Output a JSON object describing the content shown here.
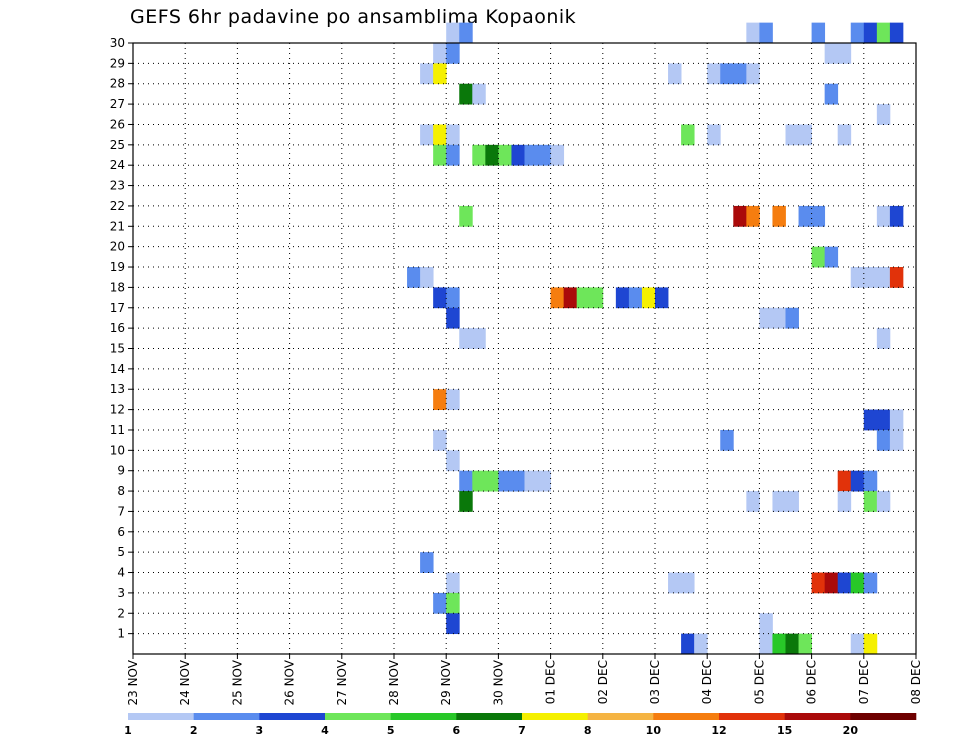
{
  "chart_data": {
    "type": "heatmap",
    "title": "GEFS 6hr padavine po ansamblima Kopaonik",
    "xlabel": "",
    "ylabel": "",
    "x_ticks": [
      "23 NOV",
      "24 NOV",
      "25 NOV",
      "26 NOV",
      "27 NOV",
      "28 NOV",
      "29 NOV",
      "30 NOV",
      "01 DEC",
      "02 DEC",
      "03 DEC",
      "04 DEC",
      "05 DEC",
      "06 DEC",
      "07 DEC",
      "08 DEC"
    ],
    "x_range_6h_steps": [
      0,
      60
    ],
    "y_range": [
      0,
      30
    ],
    "y_ticks": [
      1,
      2,
      3,
      4,
      5,
      6,
      7,
      8,
      9,
      10,
      11,
      12,
      13,
      14,
      15,
      16,
      17,
      18,
      19,
      20,
      21,
      22,
      23,
      24,
      25,
      26,
      27,
      28,
      29,
      30
    ],
    "grid": true,
    "legend_placement": "bottom",
    "legend": {
      "labels": [
        "1",
        "2",
        "3",
        "4",
        "5",
        "6",
        "7",
        "8",
        "10",
        "12",
        "15",
        "20"
      ],
      "colors": [
        "#b4c8f4",
        "#5a8cee",
        "#1e46d2",
        "#6ee65a",
        "#28c828",
        "#0a780a",
        "#f5f000",
        "#f5b442",
        "#f57d0f",
        "#e1320a",
        "#aa0a0a",
        "#6e0000"
      ]
    },
    "cells": [
      {
        "member": 30,
        "step": 24,
        "level": 1
      },
      {
        "member": 30,
        "step": 25,
        "level": 2
      },
      {
        "member": 30,
        "step": 47,
        "level": 1
      },
      {
        "member": 30,
        "step": 48,
        "level": 2
      },
      {
        "member": 30,
        "step": 52,
        "level": 2
      },
      {
        "member": 30,
        "step": 55,
        "level": 2
      },
      {
        "member": 30,
        "step": 56,
        "level": 3
      },
      {
        "member": 30,
        "step": 57,
        "level": 4
      },
      {
        "member": 30,
        "step": 58,
        "level": 3
      },
      {
        "member": 29,
        "step": 23,
        "level": 1
      },
      {
        "member": 29,
        "step": 24,
        "level": 2
      },
      {
        "member": 29,
        "step": 53,
        "level": 1
      },
      {
        "member": 29,
        "step": 54,
        "level": 1
      },
      {
        "member": 28,
        "step": 22,
        "level": 1
      },
      {
        "member": 28,
        "step": 23,
        "level": 7
      },
      {
        "member": 28,
        "step": 41,
        "level": 1
      },
      {
        "member": 28,
        "step": 44,
        "level": 1
      },
      {
        "member": 28,
        "step": 45,
        "level": 2
      },
      {
        "member": 28,
        "step": 46,
        "level": 2
      },
      {
        "member": 28,
        "step": 47,
        "level": 1
      },
      {
        "member": 27,
        "step": 25,
        "level": 6
      },
      {
        "member": 27,
        "step": 26,
        "level": 1
      },
      {
        "member": 27,
        "step": 53,
        "level": 2
      },
      {
        "member": 26,
        "step": 57,
        "level": 1
      },
      {
        "member": 25,
        "step": 22,
        "level": 1
      },
      {
        "member": 25,
        "step": 23,
        "level": 7
      },
      {
        "member": 25,
        "step": 24,
        "level": 1
      },
      {
        "member": 25,
        "step": 42,
        "level": 4
      },
      {
        "member": 25,
        "step": 44,
        "level": 1
      },
      {
        "member": 25,
        "step": 50,
        "level": 1
      },
      {
        "member": 25,
        "step": 51,
        "level": 1
      },
      {
        "member": 25,
        "step": 54,
        "level": 1
      },
      {
        "member": 24,
        "step": 23,
        "level": 4
      },
      {
        "member": 24,
        "step": 24,
        "level": 2
      },
      {
        "member": 24,
        "step": 26,
        "level": 4
      },
      {
        "member": 24,
        "step": 27,
        "level": 6
      },
      {
        "member": 24,
        "step": 28,
        "level": 4
      },
      {
        "member": 24,
        "step": 29,
        "level": 3
      },
      {
        "member": 24,
        "step": 30,
        "level": 2
      },
      {
        "member": 24,
        "step": 31,
        "level": 2
      },
      {
        "member": 24,
        "step": 32,
        "level": 1
      },
      {
        "member": 21,
        "step": 25,
        "level": 4
      },
      {
        "member": 21,
        "step": 46,
        "level": 11
      },
      {
        "member": 21,
        "step": 47,
        "level": 9
      },
      {
        "member": 21,
        "step": 49,
        "level": 9
      },
      {
        "member": 21,
        "step": 51,
        "level": 2
      },
      {
        "member": 21,
        "step": 52,
        "level": 2
      },
      {
        "member": 21,
        "step": 57,
        "level": 1
      },
      {
        "member": 21,
        "step": 58,
        "level": 3
      },
      {
        "member": 19,
        "step": 52,
        "level": 4
      },
      {
        "member": 19,
        "step": 53,
        "level": 2
      },
      {
        "member": 18,
        "step": 21,
        "level": 2
      },
      {
        "member": 18,
        "step": 22,
        "level": 1
      },
      {
        "member": 18,
        "step": 55,
        "level": 1
      },
      {
        "member": 18,
        "step": 56,
        "level": 1
      },
      {
        "member": 18,
        "step": 57,
        "level": 1
      },
      {
        "member": 18,
        "step": 58,
        "level": 10
      },
      {
        "member": 17,
        "step": 23,
        "level": 3
      },
      {
        "member": 17,
        "step": 24,
        "level": 2
      },
      {
        "member": 17,
        "step": 32,
        "level": 9
      },
      {
        "member": 17,
        "step": 33,
        "level": 11
      },
      {
        "member": 17,
        "step": 34,
        "level": 4
      },
      {
        "member": 17,
        "step": 35,
        "level": 4
      },
      {
        "member": 17,
        "step": 37,
        "level": 3
      },
      {
        "member": 17,
        "step": 38,
        "level": 2
      },
      {
        "member": 17,
        "step": 39,
        "level": 7
      },
      {
        "member": 17,
        "step": 40,
        "level": 3
      },
      {
        "member": 16,
        "step": 24,
        "level": 3
      },
      {
        "member": 16,
        "step": 48,
        "level": 1
      },
      {
        "member": 16,
        "step": 49,
        "level": 1
      },
      {
        "member": 16,
        "step": 50,
        "level": 2
      },
      {
        "member": 15,
        "step": 25,
        "level": 1
      },
      {
        "member": 15,
        "step": 26,
        "level": 1
      },
      {
        "member": 15,
        "step": 57,
        "level": 1
      },
      {
        "member": 12,
        "step": 23,
        "level": 9
      },
      {
        "member": 12,
        "step": 24,
        "level": 1
      },
      {
        "member": 11,
        "step": 56,
        "level": 3
      },
      {
        "member": 11,
        "step": 57,
        "level": 3
      },
      {
        "member": 11,
        "step": 58,
        "level": 1
      },
      {
        "member": 10,
        "step": 23,
        "level": 1
      },
      {
        "member": 10,
        "step": 45,
        "level": 2
      },
      {
        "member": 10,
        "step": 57,
        "level": 2
      },
      {
        "member": 10,
        "step": 58,
        "level": 1
      },
      {
        "member": 9,
        "step": 24,
        "level": 1
      },
      {
        "member": 8,
        "step": 25,
        "level": 2
      },
      {
        "member": 8,
        "step": 26,
        "level": 4
      },
      {
        "member": 8,
        "step": 27,
        "level": 4
      },
      {
        "member": 8,
        "step": 28,
        "level": 2
      },
      {
        "member": 8,
        "step": 29,
        "level": 2
      },
      {
        "member": 8,
        "step": 30,
        "level": 1
      },
      {
        "member": 8,
        "step": 31,
        "level": 1
      },
      {
        "member": 8,
        "step": 54,
        "level": 10
      },
      {
        "member": 8,
        "step": 55,
        "level": 3
      },
      {
        "member": 8,
        "step": 56,
        "level": 2
      },
      {
        "member": 7,
        "step": 25,
        "level": 6
      },
      {
        "member": 7,
        "step": 47,
        "level": 1
      },
      {
        "member": 7,
        "step": 49,
        "level": 1
      },
      {
        "member": 7,
        "step": 50,
        "level": 1
      },
      {
        "member": 7,
        "step": 54,
        "level": 1
      },
      {
        "member": 7,
        "step": 56,
        "level": 4
      },
      {
        "member": 7,
        "step": 57,
        "level": 1
      },
      {
        "member": 4,
        "step": 22,
        "level": 2
      },
      {
        "member": 3,
        "step": 24,
        "level": 1
      },
      {
        "member": 3,
        "step": 41,
        "level": 1
      },
      {
        "member": 3,
        "step": 42,
        "level": 1
      },
      {
        "member": 3,
        "step": 52,
        "level": 10
      },
      {
        "member": 3,
        "step": 53,
        "level": 11
      },
      {
        "member": 3,
        "step": 54,
        "level": 3
      },
      {
        "member": 3,
        "step": 55,
        "level": 5
      },
      {
        "member": 3,
        "step": 56,
        "level": 2
      },
      {
        "member": 2,
        "step": 23,
        "level": 2
      },
      {
        "member": 2,
        "step": 24,
        "level": 4
      },
      {
        "member": 1,
        "step": 24,
        "level": 3
      },
      {
        "member": 1,
        "step": 48,
        "level": 1
      },
      {
        "member": 0,
        "step": 42,
        "level": 3
      },
      {
        "member": 0,
        "step": 43,
        "level": 1
      },
      {
        "member": 0,
        "step": 48,
        "level": 1
      },
      {
        "member": 0,
        "step": 49,
        "level": 5
      },
      {
        "member": 0,
        "step": 50,
        "level": 6
      },
      {
        "member": 0,
        "step": 51,
        "level": 4
      },
      {
        "member": 0,
        "step": 55,
        "level": 1
      },
      {
        "member": 0,
        "step": 56,
        "level": 7
      }
    ]
  }
}
